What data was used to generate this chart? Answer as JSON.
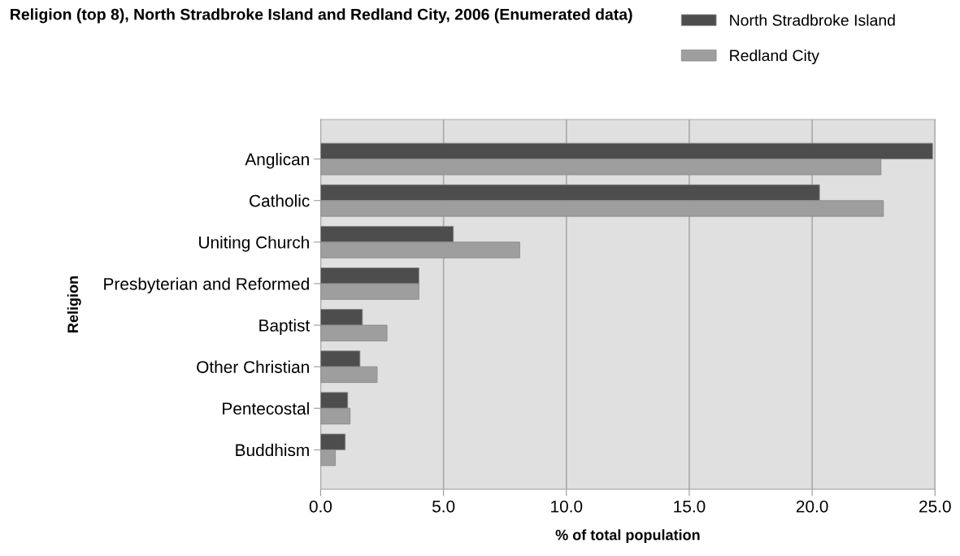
{
  "chart_data": {
    "type": "bar",
    "orientation": "horizontal",
    "title": "Religion (top 8), North Stradbroke Island and Redland City, 2006 (Enumerated data)",
    "xlabel": "% of total population",
    "ylabel": "Religion",
    "categories": [
      "Anglican",
      "Catholic",
      "Uniting Church",
      "Presbyterian and Reformed",
      "Baptist",
      "Other Christian",
      "Pentecostal",
      "Buddhism"
    ],
    "series": [
      {
        "name": "North Stradbroke Island",
        "color": "#4d4d4d",
        "values": [
          24.9,
          20.3,
          5.4,
          4.0,
          1.7,
          1.6,
          1.1,
          1.0
        ]
      },
      {
        "name": "Redland City",
        "color": "#9e9e9e",
        "values": [
          22.8,
          22.9,
          8.1,
          4.0,
          2.7,
          2.3,
          1.2,
          0.6
        ]
      }
    ],
    "xlim": [
      0,
      25
    ],
    "xticks": [
      {
        "value": 0,
        "label": "0.0"
      },
      {
        "value": 5,
        "label": "5.0"
      },
      {
        "value": 10,
        "label": "10.0"
      },
      {
        "value": 15,
        "label": "15.0"
      },
      {
        "value": 20,
        "label": "20.0"
      },
      {
        "value": 25,
        "label": "25.0"
      }
    ],
    "grid": "x",
    "legend": "top right"
  }
}
